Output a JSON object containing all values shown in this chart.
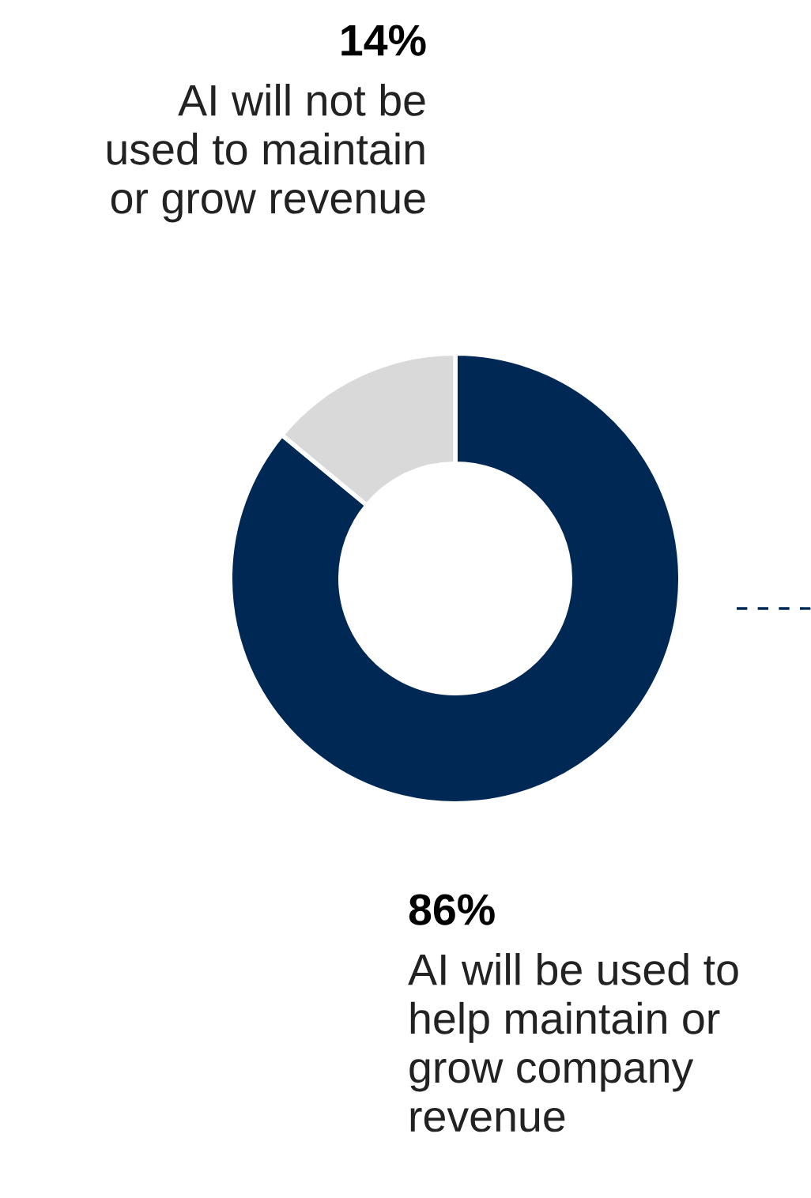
{
  "chart_data": {
    "type": "donut",
    "categories": [
      "AI will be used to\nhelp maintain or\ngrow company\nrevenue",
      "AI will not be\nused to maintain\nor grow revenue"
    ],
    "values": [
      86,
      14
    ],
    "colors": [
      "#002855",
      "#d9d9d9"
    ],
    "value_labels": [
      "86%",
      "14%"
    ],
    "legend": false
  }
}
